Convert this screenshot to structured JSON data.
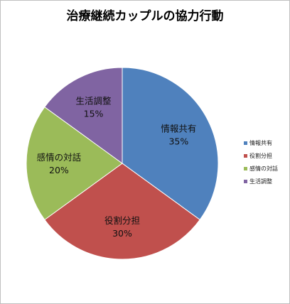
{
  "chart_data": {
    "type": "pie",
    "title": "治療継続カップルの協力行動",
    "categories": [
      "情報共有",
      "役割分担",
      "感情の対話",
      "生活調整"
    ],
    "values": [
      35,
      30,
      20,
      15
    ],
    "value_labels": [
      "35%",
      "30%",
      "20%",
      "15%"
    ],
    "colors": [
      "#4f81bd",
      "#c0504d",
      "#9bbb59",
      "#8064a2"
    ],
    "legend_position": "right",
    "start_angle": "12 o'clock, clockwise"
  }
}
